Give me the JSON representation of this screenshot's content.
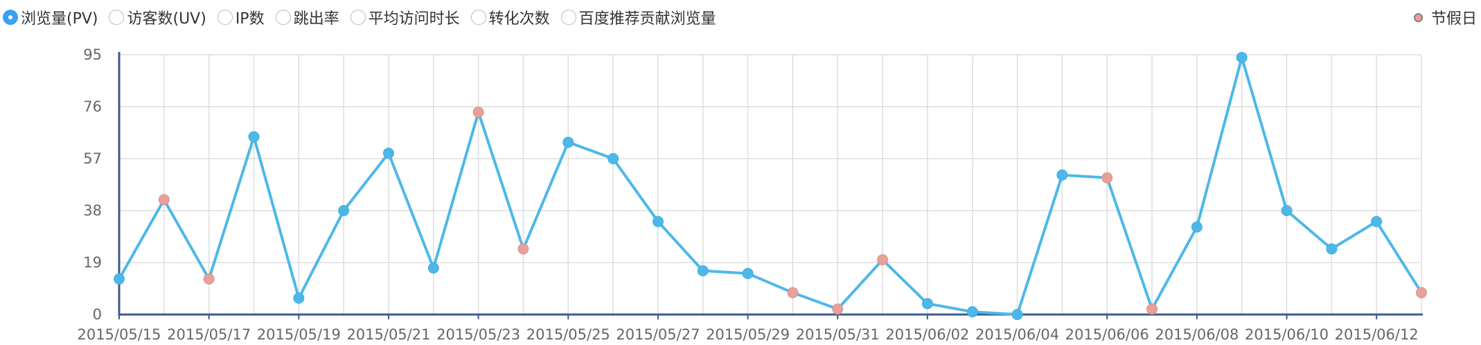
{
  "tabs": [
    {
      "label": "浏览量(PV)",
      "selected": true
    },
    {
      "label": "访客数(UV)",
      "selected": false
    },
    {
      "label": "IP数",
      "selected": false
    },
    {
      "label": "跳出率",
      "selected": false
    },
    {
      "label": "平均访问时长",
      "selected": false
    },
    {
      "label": "转化次数",
      "selected": false
    },
    {
      "label": "百度推荐贡献浏览量",
      "selected": false
    }
  ],
  "legend": {
    "label": "节假日",
    "icon": "holiday-dot-icon"
  },
  "colors": {
    "line": "#4db8e8",
    "holiday": "#e6a29a",
    "axis": "#3b5b8f",
    "grid": "#dddddd",
    "radio_selected": "#3aa0f0"
  },
  "chart_data": {
    "type": "line",
    "ylim": [
      0,
      95
    ],
    "yticks": [
      0,
      19,
      38,
      57,
      76,
      95
    ],
    "xtick_labels": [
      "2015/05/15",
      "2015/05/17",
      "2015/05/19",
      "2015/05/21",
      "2015/05/23",
      "2015/05/25",
      "2015/05/27",
      "2015/05/29",
      "2015/05/31",
      "2015/06/02",
      "2015/06/04",
      "2015/06/06",
      "2015/06/08",
      "2015/06/10",
      "2015/06/12"
    ],
    "x": [
      "2015/05/15",
      "2015/05/16",
      "2015/05/17",
      "2015/05/18",
      "2015/05/19",
      "2015/05/20",
      "2015/05/21",
      "2015/05/22",
      "2015/05/23",
      "2015/05/24",
      "2015/05/25",
      "2015/05/26",
      "2015/05/27",
      "2015/05/28",
      "2015/05/29",
      "2015/05/30",
      "2015/05/31",
      "2015/06/01",
      "2015/06/02",
      "2015/06/03",
      "2015/06/04",
      "2015/06/05",
      "2015/06/06",
      "2015/06/07",
      "2015/06/08",
      "2015/06/09",
      "2015/06/10",
      "2015/06/11",
      "2015/06/12",
      "2015/06/13"
    ],
    "values": [
      13,
      42,
      13,
      65,
      6,
      38,
      59,
      17,
      74,
      24,
      63,
      57,
      34,
      16,
      15,
      8,
      2,
      20,
      4,
      1,
      0,
      51,
      50,
      2,
      32,
      94,
      38,
      24,
      34,
      8
    ],
    "holiday": [
      false,
      true,
      true,
      false,
      false,
      false,
      false,
      false,
      true,
      true,
      false,
      false,
      false,
      false,
      false,
      true,
      true,
      true,
      false,
      false,
      false,
      false,
      true,
      true,
      false,
      false,
      false,
      false,
      false,
      true
    ],
    "grid": true,
    "legend_position": "top-right"
  }
}
